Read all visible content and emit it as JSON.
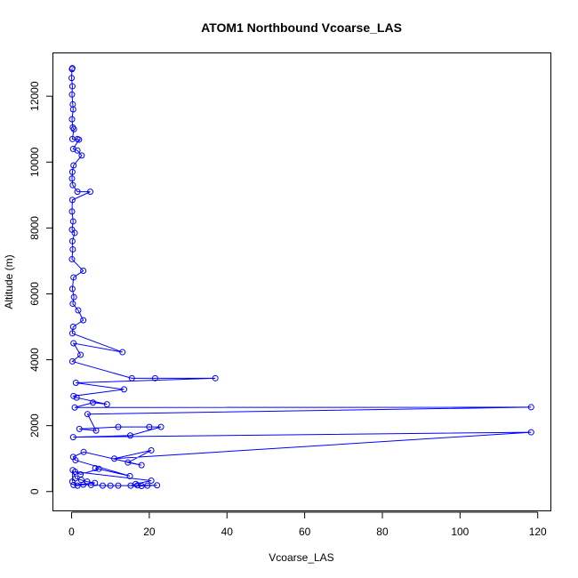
{
  "chart_data": {
    "type": "scatter",
    "title": "ATOM1 Northbound Vcoarse_LAS",
    "xlabel": "Vcoarse_LAS",
    "ylabel": "Altitude (m)",
    "xlim": [
      -4.7,
      123.5
    ],
    "ylim": [
      -600,
      13300
    ],
    "xticks": [
      0,
      20,
      40,
      60,
      80,
      100,
      120
    ],
    "yticks": [
      0,
      2000,
      4000,
      6000,
      8000,
      10000,
      12000
    ],
    "grid": false,
    "legend": "none",
    "series": [
      {
        "color": "#0000ff",
        "marker": "open-circle",
        "connected": true,
        "points": [
          [
            0.2,
            12850
          ],
          [
            0.1,
            12820
          ],
          [
            0.0,
            12550
          ],
          [
            0.2,
            12300
          ],
          [
            0.1,
            12050
          ],
          [
            0.3,
            11750
          ],
          [
            0.4,
            11600
          ],
          [
            0.1,
            11300
          ],
          [
            0.3,
            11050
          ],
          [
            0.6,
            11000
          ],
          [
            0.2,
            10700
          ],
          [
            1.5,
            10700
          ],
          [
            1.9,
            10680
          ],
          [
            0.4,
            10400
          ],
          [
            1.5,
            10350
          ],
          [
            2.6,
            10200
          ],
          [
            0.5,
            9900
          ],
          [
            0.2,
            9700
          ],
          [
            0.1,
            9500
          ],
          [
            0.3,
            9300
          ],
          [
            1.5,
            9100
          ],
          [
            4.8,
            9100
          ],
          [
            0.2,
            8850
          ],
          [
            0.1,
            8500
          ],
          [
            0.4,
            8200
          ],
          [
            0.1,
            7950
          ],
          [
            0.8,
            7850
          ],
          [
            0.2,
            7600
          ],
          [
            0.3,
            7350
          ],
          [
            0.1,
            7050
          ],
          [
            3.0,
            6700
          ],
          [
            0.5,
            6500
          ],
          [
            0.2,
            6150
          ],
          [
            0.6,
            5900
          ],
          [
            0.3,
            5700
          ],
          [
            1.7,
            5500
          ],
          [
            3.0,
            5200
          ],
          [
            0.4,
            5000
          ],
          [
            0.2,
            4800
          ],
          [
            13.1,
            4230
          ],
          [
            0.5,
            4500
          ],
          [
            2.3,
            4150
          ],
          [
            0.2,
            3950
          ],
          [
            15.5,
            3440
          ],
          [
            21.5,
            3440
          ],
          [
            37.0,
            3440
          ],
          [
            1.1,
            3300
          ],
          [
            13.5,
            3100
          ],
          [
            0.5,
            2900
          ],
          [
            1.3,
            2850
          ],
          [
            9.1,
            2650
          ],
          [
            5.5,
            2700
          ],
          [
            0.8,
            2550
          ],
          [
            118.3,
            2560
          ],
          [
            4.1,
            2350
          ],
          [
            6.3,
            1850
          ],
          [
            2.0,
            1900
          ],
          [
            12.0,
            1960
          ],
          [
            20.0,
            1960
          ],
          [
            23.0,
            1960
          ],
          [
            15.1,
            1700
          ],
          [
            0.4,
            1650
          ],
          [
            118.3,
            1800
          ],
          [
            11.0,
            1000
          ],
          [
            20.5,
            1250
          ],
          [
            14.5,
            880
          ],
          [
            18.0,
            800
          ],
          [
            3.1,
            1200
          ],
          [
            0.4,
            1050
          ],
          [
            1.0,
            950
          ],
          [
            15.0,
            470
          ],
          [
            6.1,
            710
          ],
          [
            7.0,
            690
          ],
          [
            2.3,
            520
          ],
          [
            0.9,
            600
          ],
          [
            20.5,
            330
          ],
          [
            16.5,
            230
          ],
          [
            15.2,
            180
          ],
          [
            18.0,
            170
          ],
          [
            22.0,
            190
          ],
          [
            17.0,
            190
          ],
          [
            19.5,
            180
          ],
          [
            10.0,
            180
          ],
          [
            12.0,
            180
          ],
          [
            8.0,
            180
          ],
          [
            5.0,
            200
          ],
          [
            3.0,
            210
          ],
          [
            1.5,
            180
          ],
          [
            0.5,
            200
          ],
          [
            6.0,
            260
          ],
          [
            4.0,
            300
          ],
          [
            2.5,
            350
          ],
          [
            1.0,
            400
          ],
          [
            0.3,
            650
          ],
          [
            0.2,
            300
          ]
        ]
      }
    ]
  }
}
